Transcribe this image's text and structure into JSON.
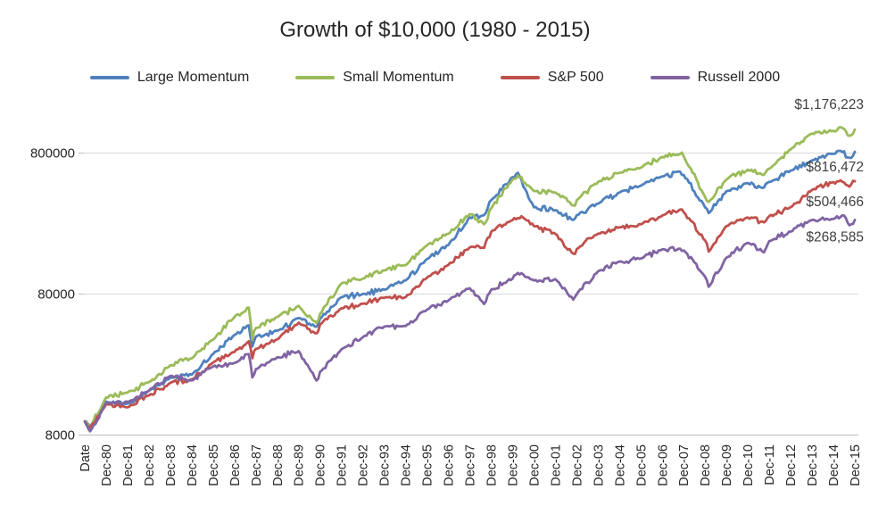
{
  "chart_data": {
    "type": "line",
    "title": "Growth of $10,000 (1980 - 2015)",
    "legend_position": "top",
    "grid": "horizontal",
    "x_axis": {
      "labels": [
        "Date",
        "Dec-80",
        "Dec-81",
        "Dec-82",
        "Dec-83",
        "Dec-84",
        "Dec-85",
        "Dec-86",
        "Dec-87",
        "Dec-88",
        "Dec-89",
        "Dec-90",
        "Dec-91",
        "Dec-92",
        "Dec-93",
        "Dec-94",
        "Dec-95",
        "Dec-96",
        "Dec-97",
        "Dec-98",
        "Dec-99",
        "Dec-00",
        "Dec-01",
        "Dec-02",
        "Dec-03",
        "Dec-04",
        "Dec-05",
        "Dec-06",
        "Dec-07",
        "Dec-08",
        "Dec-09",
        "Dec-10",
        "Dec-11",
        "Dec-12",
        "Dec-13",
        "Dec-14",
        "Dec-15"
      ],
      "label_rotation_deg": -90
    },
    "y_axis": {
      "scale": "log",
      "tick_values": [
        8000,
        80000,
        800000
      ],
      "tick_labels": [
        "8000",
        "80000",
        "800000"
      ]
    },
    "colors": {
      "grid": "#D9D9D9",
      "axis": "#BFBFBF",
      "axis_text": "#262626",
      "end_label_text": "#404040"
    },
    "series": [
      {
        "name": "Large Momentum",
        "color": "#4F81BD",
        "end_label": "$816,472",
        "final_value": 816472,
        "yearly_values": [
          10000,
          13800,
          13400,
          16500,
          20500,
          21500,
          30000,
          41000,
          40000,
          44000,
          54000,
          53500,
          76000,
          80000,
          86000,
          100000,
          142000,
          178000,
          280000,
          370000,
          540000,
          330000,
          315000,
          290000,
          350000,
          420000,
          470000,
          545000,
          560000,
          330000,
          430000,
          490000,
          500000,
          600000,
          710000,
          790000,
          816472
        ],
        "events": [
          [
            3,
            9000
          ],
          [
            92,
            48000
          ],
          [
            94,
            34000
          ],
          [
            130,
            47000
          ],
          [
            224,
            290000
          ],
          [
            243,
            580000
          ],
          [
            274,
            268000
          ],
          [
            334,
            590000
          ],
          [
            350,
            300000
          ],
          [
            381,
            455000
          ],
          [
            424,
            830000
          ],
          [
            429,
            740000
          ]
        ]
      },
      {
        "name": "Small Momentum",
        "color": "#9BBB59",
        "end_label": "$1,176,223",
        "final_value": 1176223,
        "yearly_values": [
          10000,
          14800,
          16000,
          19000,
          25000,
          28000,
          38000,
          55000,
          46000,
          55000,
          66000,
          58000,
          95000,
          103000,
          118000,
          128000,
          177000,
          214000,
          295000,
          325000,
          520000,
          430000,
          420000,
          370000,
          500000,
          580000,
          630000,
          750000,
          760000,
          390000,
          520000,
          610000,
          620000,
          850000,
          1100000,
          1150000,
          1176223
        ],
        "events": [
          [
            3,
            9200
          ],
          [
            92,
            64000
          ],
          [
            94,
            38000
          ],
          [
            130,
            50000
          ],
          [
            224,
            250000
          ],
          [
            243,
            555000
          ],
          [
            274,
            340000
          ],
          [
            334,
            790000
          ],
          [
            350,
            360000
          ],
          [
            381,
            560000
          ],
          [
            424,
            1220000
          ],
          [
            429,
            1060000
          ]
        ]
      },
      {
        "name": "S&P 500",
        "color": "#C0504D",
        "end_label": "$504,466",
        "final_value": 504466,
        "yearly_values": [
          10000,
          13240,
          12590,
          15290,
          18730,
          19900,
          26200,
          31080,
          32710,
          38140,
          50200,
          48650,
          63440,
          68270,
          75150,
          76140,
          104750,
          128800,
          171760,
          220840,
          267260,
          242930,
          214060,
          166750,
          214570,
          237930,
          249590,
          289020,
          304920,
          192100,
          242920,
          279480,
          285350,
          331010,
          438140,
          498130,
          504466
        ],
        "events": [
          [
            3,
            9100
          ],
          [
            92,
            37000
          ],
          [
            94,
            28000
          ],
          [
            130,
            42000
          ],
          [
            224,
            170000
          ],
          [
            245,
            285000
          ],
          [
            274,
            155000
          ],
          [
            334,
            318000
          ],
          [
            350,
            160000
          ],
          [
            381,
            258000
          ],
          [
            424,
            512000
          ],
          [
            429,
            462000
          ]
        ]
      },
      {
        "name": "Russell 2000",
        "color": "#8064A2",
        "end_label": "$268,585",
        "final_value": 268585,
        "yearly_values": [
          10000,
          13500,
          13800,
          16500,
          21000,
          19500,
          24500,
          26000,
          23500,
          28500,
          31500,
          22500,
          32500,
          39500,
          47000,
          47500,
          62000,
          72000,
          88000,
          86000,
          103000,
          100000,
          102000,
          80000,
          116000,
          136000,
          143000,
          166000,
          163000,
          106000,
          145000,
          185000,
          190000,
          222000,
          268000,
          273000,
          268585
        ],
        "events": [
          [
            3,
            8500
          ],
          [
            92,
            30000
          ],
          [
            94,
            20500
          ],
          [
            130,
            19500
          ],
          [
            224,
            68000
          ],
          [
            243,
            113000
          ],
          [
            274,
            73000
          ],
          [
            334,
            168000
          ],
          [
            350,
            90000
          ],
          [
            381,
            158000
          ],
          [
            426,
            288000
          ],
          [
            429,
            246000
          ]
        ]
      }
    ]
  }
}
